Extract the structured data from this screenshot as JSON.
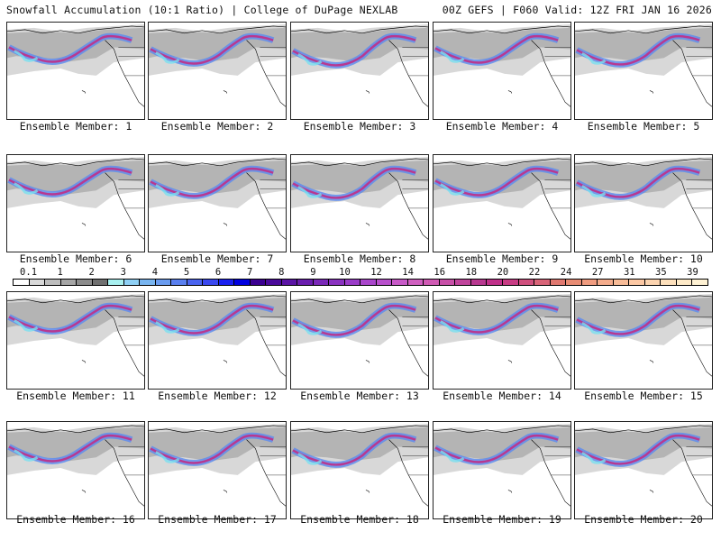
{
  "header": {
    "title_left": "Snowfall Accumulation (10:1 Ratio) | College of DuPage NEXLAB",
    "title_right": "00Z GEFS | F060 Valid: 12Z FRI JAN 16 2026"
  },
  "panels": [
    {
      "label": "Ensemble Member: 1"
    },
    {
      "label": "Ensemble Member: 2"
    },
    {
      "label": "Ensemble Member: 3"
    },
    {
      "label": "Ensemble Member: 4"
    },
    {
      "label": "Ensemble Member: 5"
    },
    {
      "label": "Ensemble Member: 6"
    },
    {
      "label": "Ensemble Member: 7"
    },
    {
      "label": "Ensemble Member: 8"
    },
    {
      "label": "Ensemble Member: 9"
    },
    {
      "label": "Ensemble Member: 10"
    },
    {
      "label": "Ensemble Member: 11"
    },
    {
      "label": "Ensemble Member: 12"
    },
    {
      "label": "Ensemble Member: 13"
    },
    {
      "label": "Ensemble Member: 14"
    },
    {
      "label": "Ensemble Member: 15"
    },
    {
      "label": "Ensemble Member: 16"
    },
    {
      "label": "Ensemble Member: 17"
    },
    {
      "label": "Ensemble Member: 18"
    },
    {
      "label": "Ensemble Member: 19"
    },
    {
      "label": "Ensemble Member: 20"
    }
  ],
  "colorbar": {
    "tick_labels": [
      "0.1",
      "1",
      "2",
      "3",
      "4",
      "5",
      "6",
      "7",
      "8",
      "9",
      "10",
      "12",
      "14",
      "16",
      "18",
      "20",
      "22",
      "24",
      "27",
      "31",
      "35",
      "39"
    ],
    "colors": [
      "#ffffff",
      "#d9d9d9",
      "#bdbdbd",
      "#a6a6a6",
      "#8c8c8c",
      "#707070",
      "#a8f0f0",
      "#8fd0f5",
      "#79b5f0",
      "#6a9cf0",
      "#5a80f0",
      "#4a64f0",
      "#3a48f0",
      "#1a20f0",
      "#0000e0",
      "#3a0090",
      "#4a0a9a",
      "#5a14a4",
      "#6a1eae",
      "#7a28b8",
      "#8a32c0",
      "#9a3cc8",
      "#aa46cc",
      "#b850cc",
      "#c85ac8",
      "#d060c0",
      "#d05ab4",
      "#c850a8",
      "#c0449c",
      "#b83890",
      "#c0308a",
      "#c83c84",
      "#d0507e",
      "#d86478",
      "#e07870",
      "#e88c74",
      "#f09c80",
      "#f4ac8c",
      "#f8bc98",
      "#fcc8a4",
      "#fcd4b0",
      "#fde0bc",
      "#feeac8",
      "#fff2d4"
    ]
  }
}
